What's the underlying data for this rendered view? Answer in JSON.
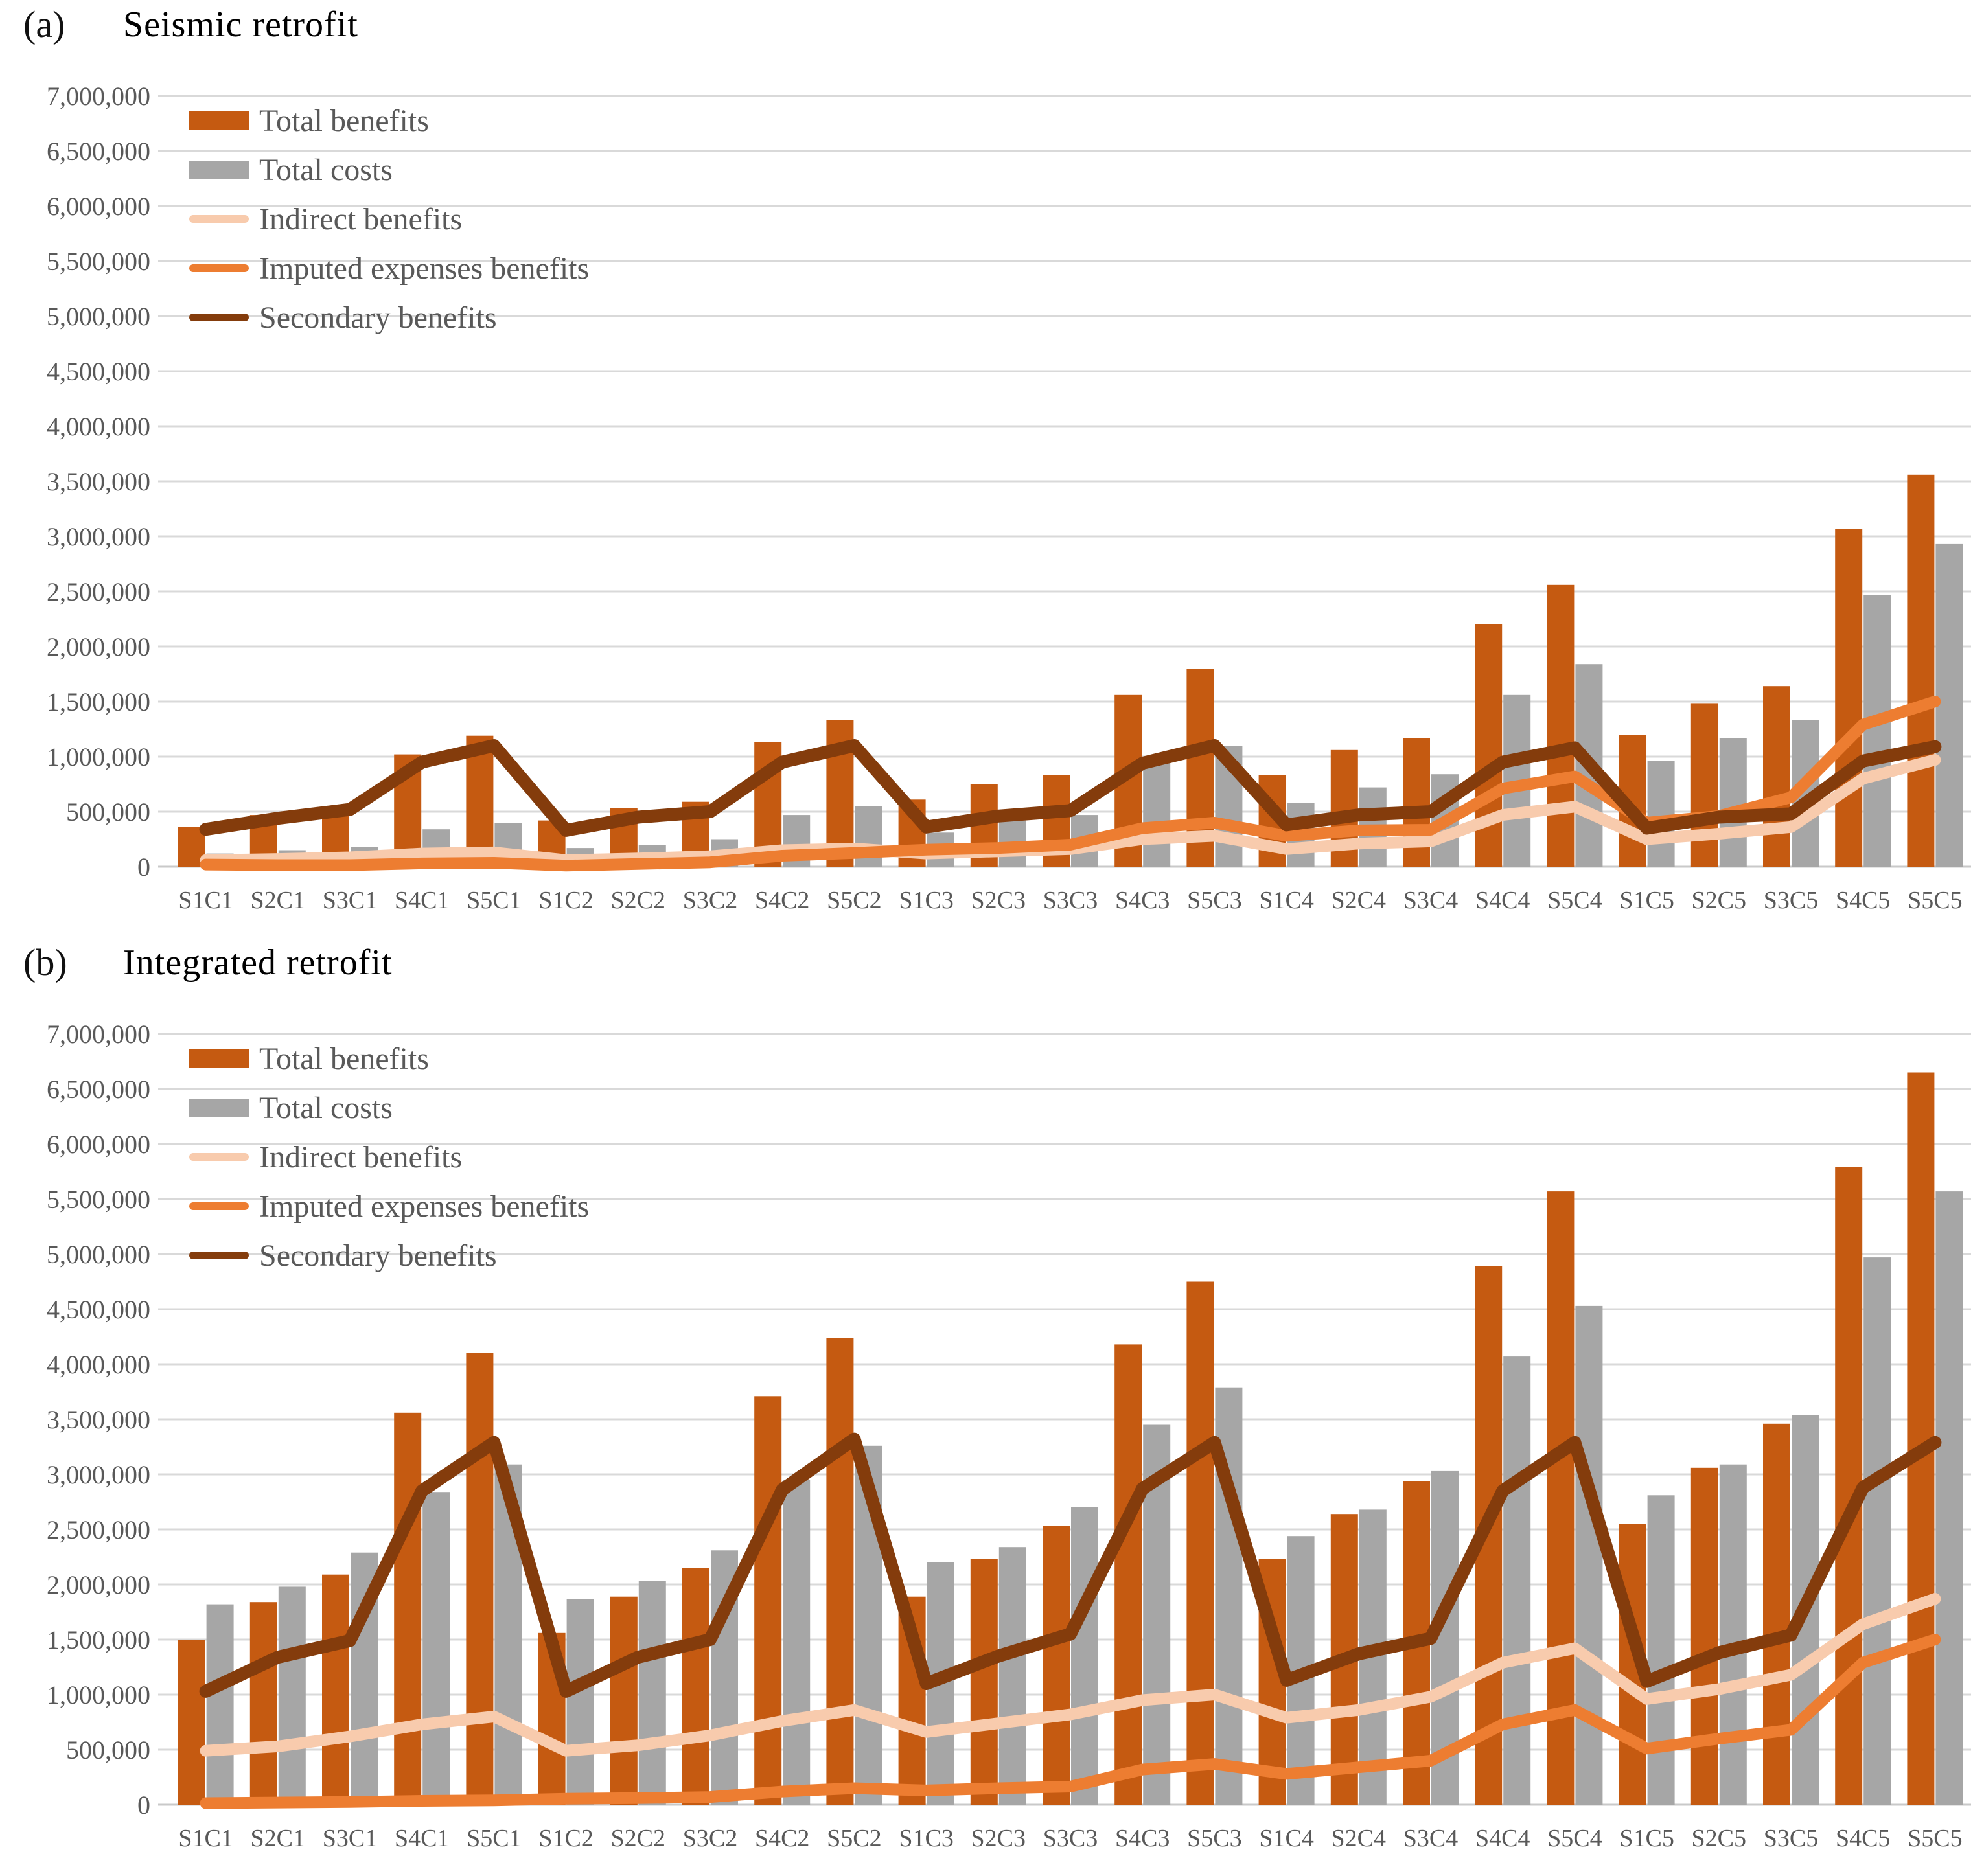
{
  "page": {
    "background": "#ffffff"
  },
  "colors": {
    "total_benefits": "#C55A11",
    "total_costs": "#A6A6A6",
    "indirect_benefits": "#F8CBAD",
    "imputed_expenses_benefits": "#ED7D31",
    "secondary_benefits": "#843C0C",
    "gridline": "#D9D9D9",
    "axis_text": "#595959",
    "title_text": "#000000"
  },
  "y_axis": {
    "min": 0,
    "max": 7000000,
    "step": 500000,
    "tick_labels": [
      "0",
      "500,000",
      "1,000,000",
      "1,500,000",
      "2,000,000",
      "2,500,000",
      "3,000,000",
      "3,500,000",
      "4,000,000",
      "4,500,000",
      "5,000,000",
      "5,500,000",
      "6,000,000",
      "6,500,000",
      "7,000,000"
    ]
  },
  "legend": {
    "items": [
      {
        "label": "Total benefits",
        "type": "bar",
        "color": "#C55A11"
      },
      {
        "label": "Total costs",
        "type": "bar",
        "color": "#A6A6A6"
      },
      {
        "label": "Indirect benefits",
        "type": "line",
        "color": "#F8CBAD"
      },
      {
        "label": "Imputed expenses benefits",
        "type": "line",
        "color": "#ED7D31"
      },
      {
        "label": "Secondary benefits",
        "type": "line",
        "color": "#843C0C"
      }
    ]
  },
  "chart_data": [
    {
      "id": "a",
      "panel_label": "(a)",
      "title": "Seismic retrofit",
      "type": "bar",
      "ylim": [
        0,
        7000000
      ],
      "grid": true,
      "legend_position": "upper-left-inside",
      "categories": [
        "S1C1",
        "S2C1",
        "S3C1",
        "S4C1",
        "S5C1",
        "S1C2",
        "S2C2",
        "S3C2",
        "S4C2",
        "S5C2",
        "S1C3",
        "S2C3",
        "S3C3",
        "S4C3",
        "S5C3",
        "S1C4",
        "S2C4",
        "S3C4",
        "S4C4",
        "S5C4",
        "S1C5",
        "S2C5",
        "S3C5",
        "S4C5",
        "S5C5"
      ],
      "series": [
        {
          "name": "Total benefits",
          "kind": "bar",
          "color": "#C55A11",
          "values": [
            360000,
            470000,
            530000,
            1020000,
            1190000,
            420000,
            530000,
            590000,
            1130000,
            1330000,
            610000,
            750000,
            830000,
            1560000,
            1800000,
            830000,
            1060000,
            1170000,
            2200000,
            2560000,
            1200000,
            1480000,
            1640000,
            3070000,
            3560000
          ]
        },
        {
          "name": "Total costs",
          "kind": "bar",
          "color": "#A6A6A6",
          "values": [
            120000,
            150000,
            180000,
            340000,
            400000,
            170000,
            200000,
            250000,
            470000,
            550000,
            310000,
            420000,
            470000,
            960000,
            1100000,
            580000,
            720000,
            840000,
            1560000,
            1840000,
            960000,
            1170000,
            1330000,
            2470000,
            2930000
          ]
        },
        {
          "name": "Indirect benefits",
          "kind": "line",
          "color": "#F8CBAD",
          "values": [
            60000,
            70000,
            85000,
            120000,
            130000,
            60000,
            75000,
            95000,
            150000,
            165000,
            120000,
            140000,
            160000,
            250000,
            280000,
            160000,
            210000,
            230000,
            470000,
            545000,
            250000,
            300000,
            360000,
            800000,
            970000
          ]
        },
        {
          "name": "Imputed expenses benefits",
          "kind": "line",
          "color": "#ED7D31",
          "values": [
            20000,
            15000,
            15000,
            30000,
            35000,
            10000,
            25000,
            40000,
            100000,
            125000,
            155000,
            170000,
            200000,
            350000,
            400000,
            280000,
            330000,
            335000,
            710000,
            820000,
            400000,
            460000,
            630000,
            1290000,
            1500000
          ]
        },
        {
          "name": "Secondary benefits",
          "kind": "line",
          "color": "#843C0C",
          "values": [
            340000,
            440000,
            520000,
            950000,
            1100000,
            330000,
            450000,
            500000,
            950000,
            1100000,
            360000,
            460000,
            510000,
            940000,
            1100000,
            380000,
            470000,
            500000,
            950000,
            1080000,
            350000,
            450000,
            480000,
            960000,
            1090000
          ]
        }
      ]
    },
    {
      "id": "b",
      "panel_label": "(b)",
      "title": "Integrated retrofit",
      "type": "bar",
      "ylim": [
        0,
        7000000
      ],
      "grid": true,
      "legend_position": "upper-left-inside",
      "categories": [
        "S1C1",
        "S2C1",
        "S3C1",
        "S4C1",
        "S5C1",
        "S1C2",
        "S2C2",
        "S3C2",
        "S4C2",
        "S5C2",
        "S1C3",
        "S2C3",
        "S3C3",
        "S4C3",
        "S5C3",
        "S1C4",
        "S2C4",
        "S3C4",
        "S4C4",
        "S5C4",
        "S1C5",
        "S2C5",
        "S3C5",
        "S4C5",
        "S5C5"
      ],
      "series": [
        {
          "name": "Total benefits",
          "kind": "bar",
          "color": "#C55A11",
          "values": [
            1500000,
            1840000,
            2090000,
            3560000,
            4100000,
            1560000,
            1890000,
            2150000,
            3710000,
            4240000,
            1890000,
            2230000,
            2530000,
            4180000,
            4750000,
            2230000,
            2640000,
            2940000,
            4890000,
            5570000,
            2550000,
            3060000,
            3460000,
            5790000,
            6650000
          ]
        },
        {
          "name": "Total costs",
          "kind": "bar",
          "color": "#A6A6A6",
          "values": [
            1820000,
            1980000,
            2290000,
            2840000,
            3090000,
            1870000,
            2030000,
            2310000,
            2950000,
            3260000,
            2200000,
            2340000,
            2700000,
            3450000,
            3790000,
            2440000,
            2680000,
            3030000,
            4070000,
            4530000,
            2810000,
            3090000,
            3540000,
            4970000,
            5570000
          ]
        },
        {
          "name": "Indirect benefits",
          "kind": "line",
          "color": "#F8CBAD",
          "values": [
            490000,
            530000,
            620000,
            730000,
            800000,
            490000,
            540000,
            630000,
            760000,
            860000,
            660000,
            740000,
            820000,
            950000,
            1000000,
            790000,
            860000,
            980000,
            1290000,
            1420000,
            960000,
            1050000,
            1180000,
            1640000,
            1870000
          ]
        },
        {
          "name": "Imputed expenses benefits",
          "kind": "line",
          "color": "#ED7D31",
          "values": [
            15000,
            20000,
            25000,
            35000,
            40000,
            55000,
            60000,
            70000,
            120000,
            150000,
            130000,
            150000,
            165000,
            320000,
            370000,
            280000,
            340000,
            400000,
            730000,
            860000,
            510000,
            600000,
            680000,
            1290000,
            1500000
          ]
        },
        {
          "name": "Secondary benefits",
          "kind": "line",
          "color": "#843C0C",
          "values": [
            1030000,
            1340000,
            1490000,
            2850000,
            3290000,
            1030000,
            1340000,
            1500000,
            2860000,
            3320000,
            1100000,
            1350000,
            1550000,
            2870000,
            3290000,
            1130000,
            1370000,
            1510000,
            2850000,
            3290000,
            1120000,
            1380000,
            1540000,
            2880000,
            3290000
          ]
        }
      ]
    }
  ]
}
